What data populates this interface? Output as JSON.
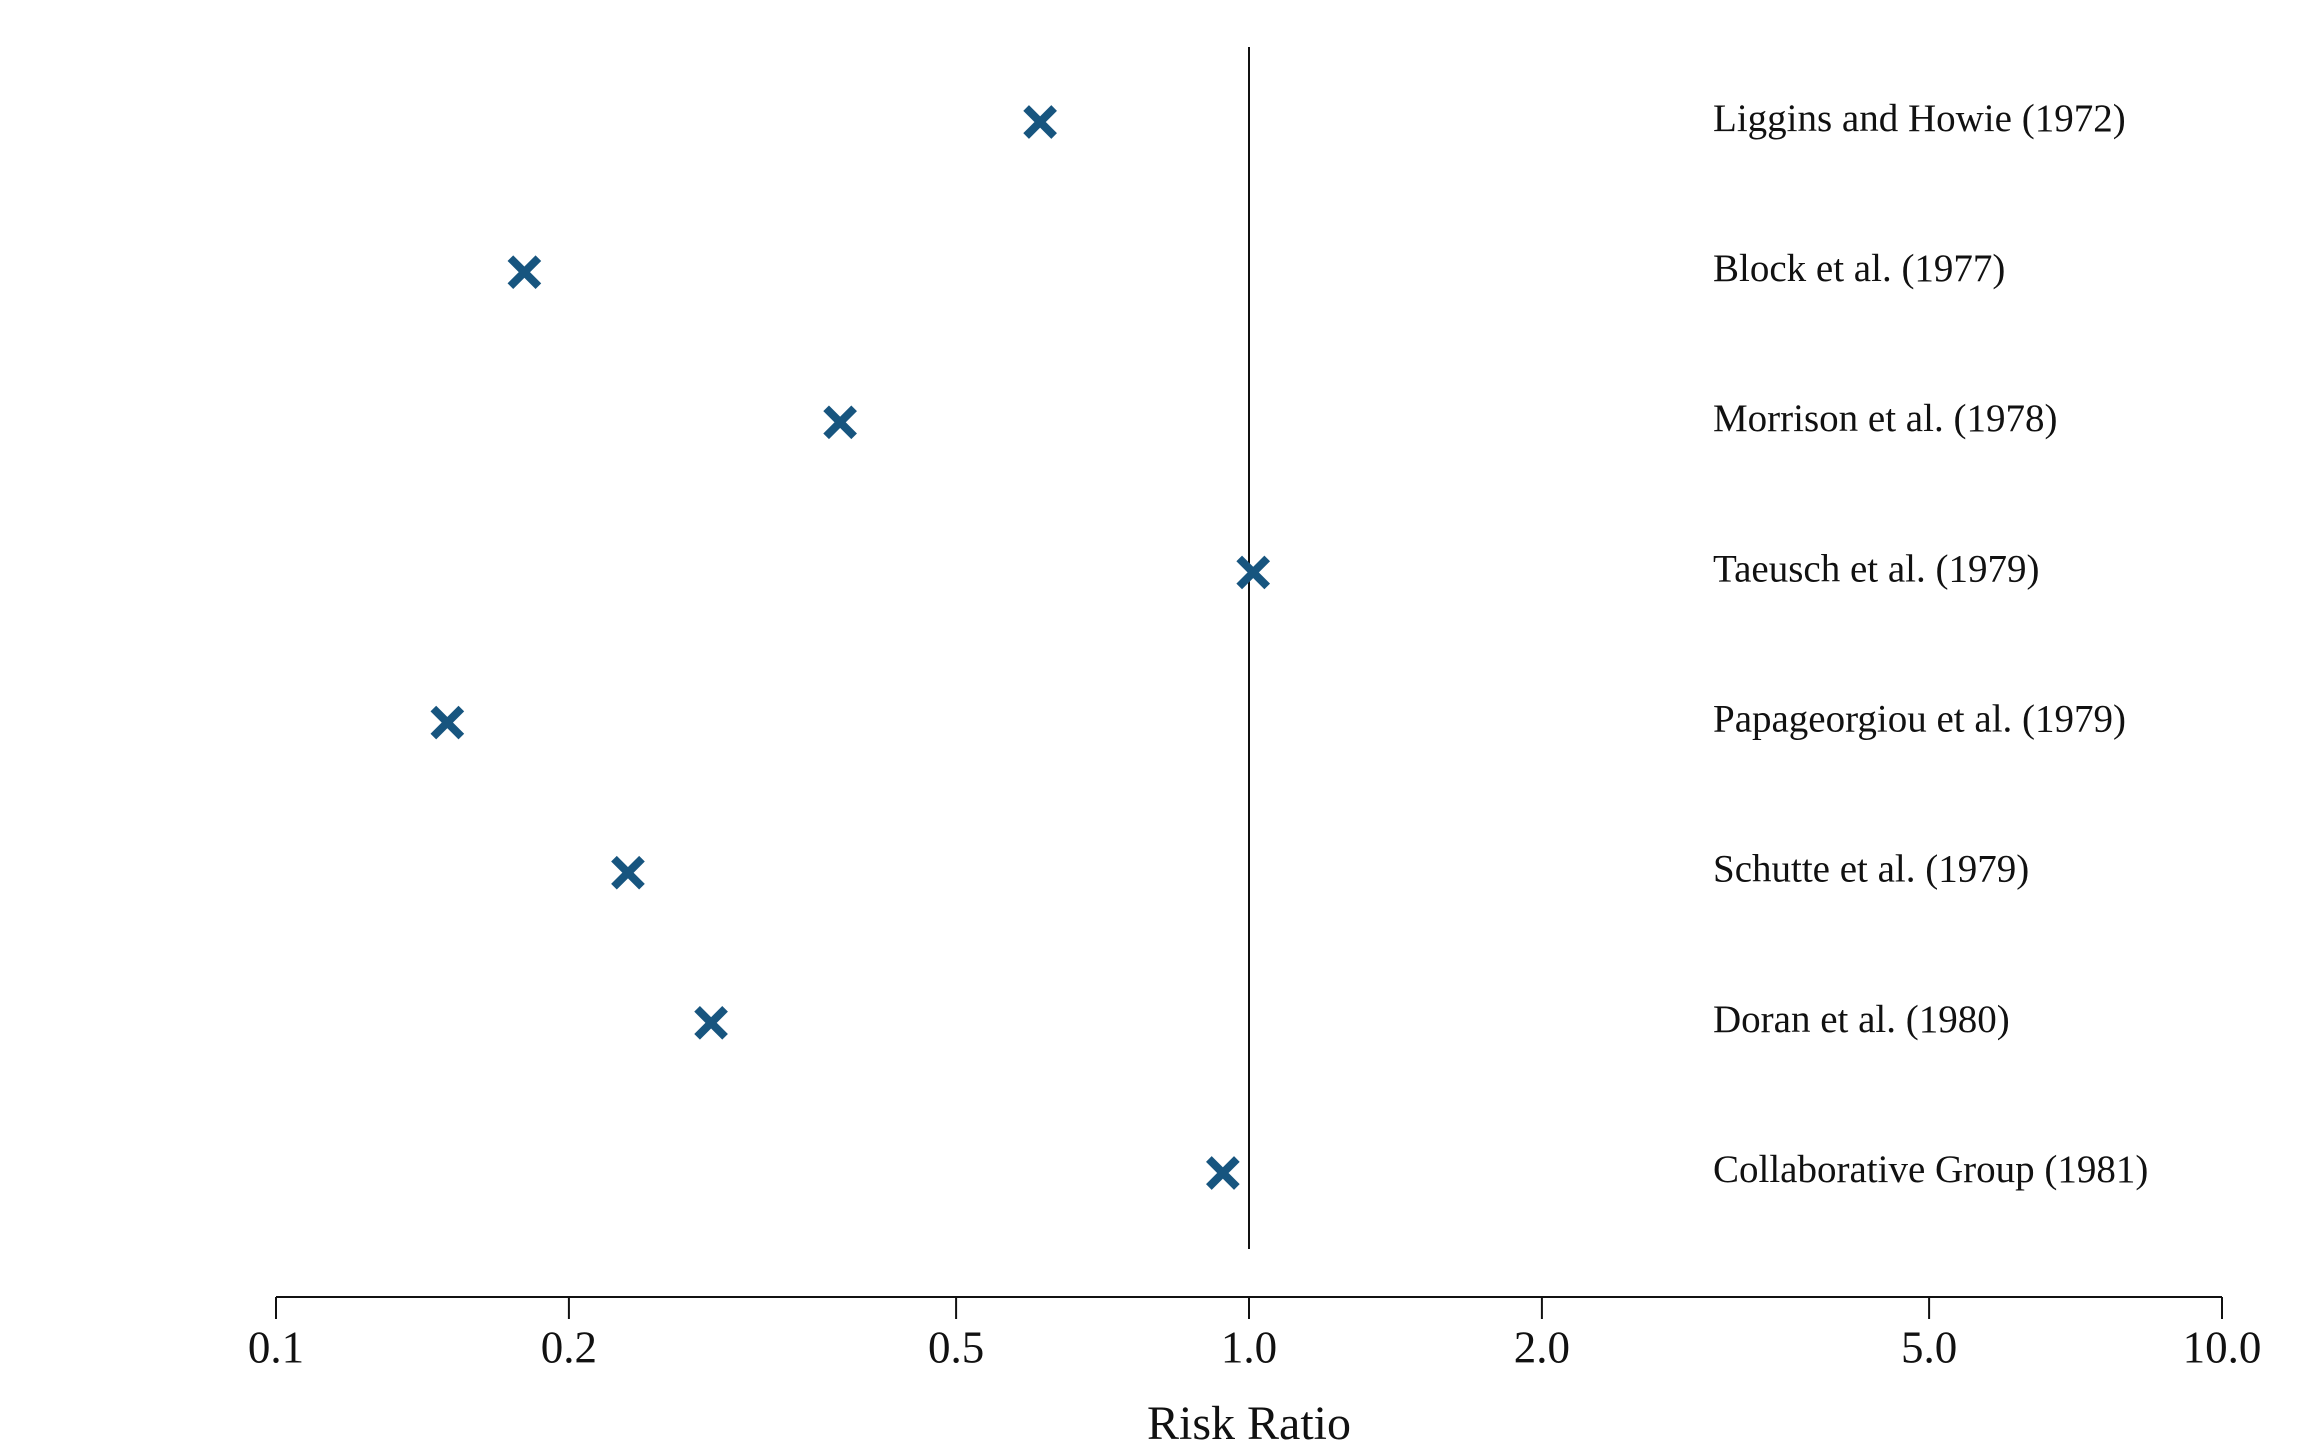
{
  "chart_data": {
    "type": "forest",
    "x_label": "Risk Ratio",
    "categories": [
      "Liggins and Howie (1972)",
      "Block et al. (1977)",
      "Morrison et al. (1978)",
      "Taeusch et al. (1979)",
      "Papageorgiou et al. (1979)",
      "Schutte et al. (1979)",
      "Doran et al. (1980)",
      "Collaborative Group (1981)"
    ],
    "values": [
      0.61,
      0.18,
      0.38,
      1.01,
      0.15,
      0.23,
      0.28,
      0.94
    ],
    "color": "#17557f",
    "xscale": "log",
    "xlim": [
      0.1,
      10
    ],
    "xticks": [
      0.1,
      0.2,
      0.5,
      {
        "value": 1,
        "label": "1.0"
      },
      {
        "value": 2,
        "label": "2.0"
      },
      {
        "value": 5,
        "label": "5.0"
      },
      {
        "value": 10,
        "label": "10.0"
      }
    ],
    "reference_line": 1
  }
}
